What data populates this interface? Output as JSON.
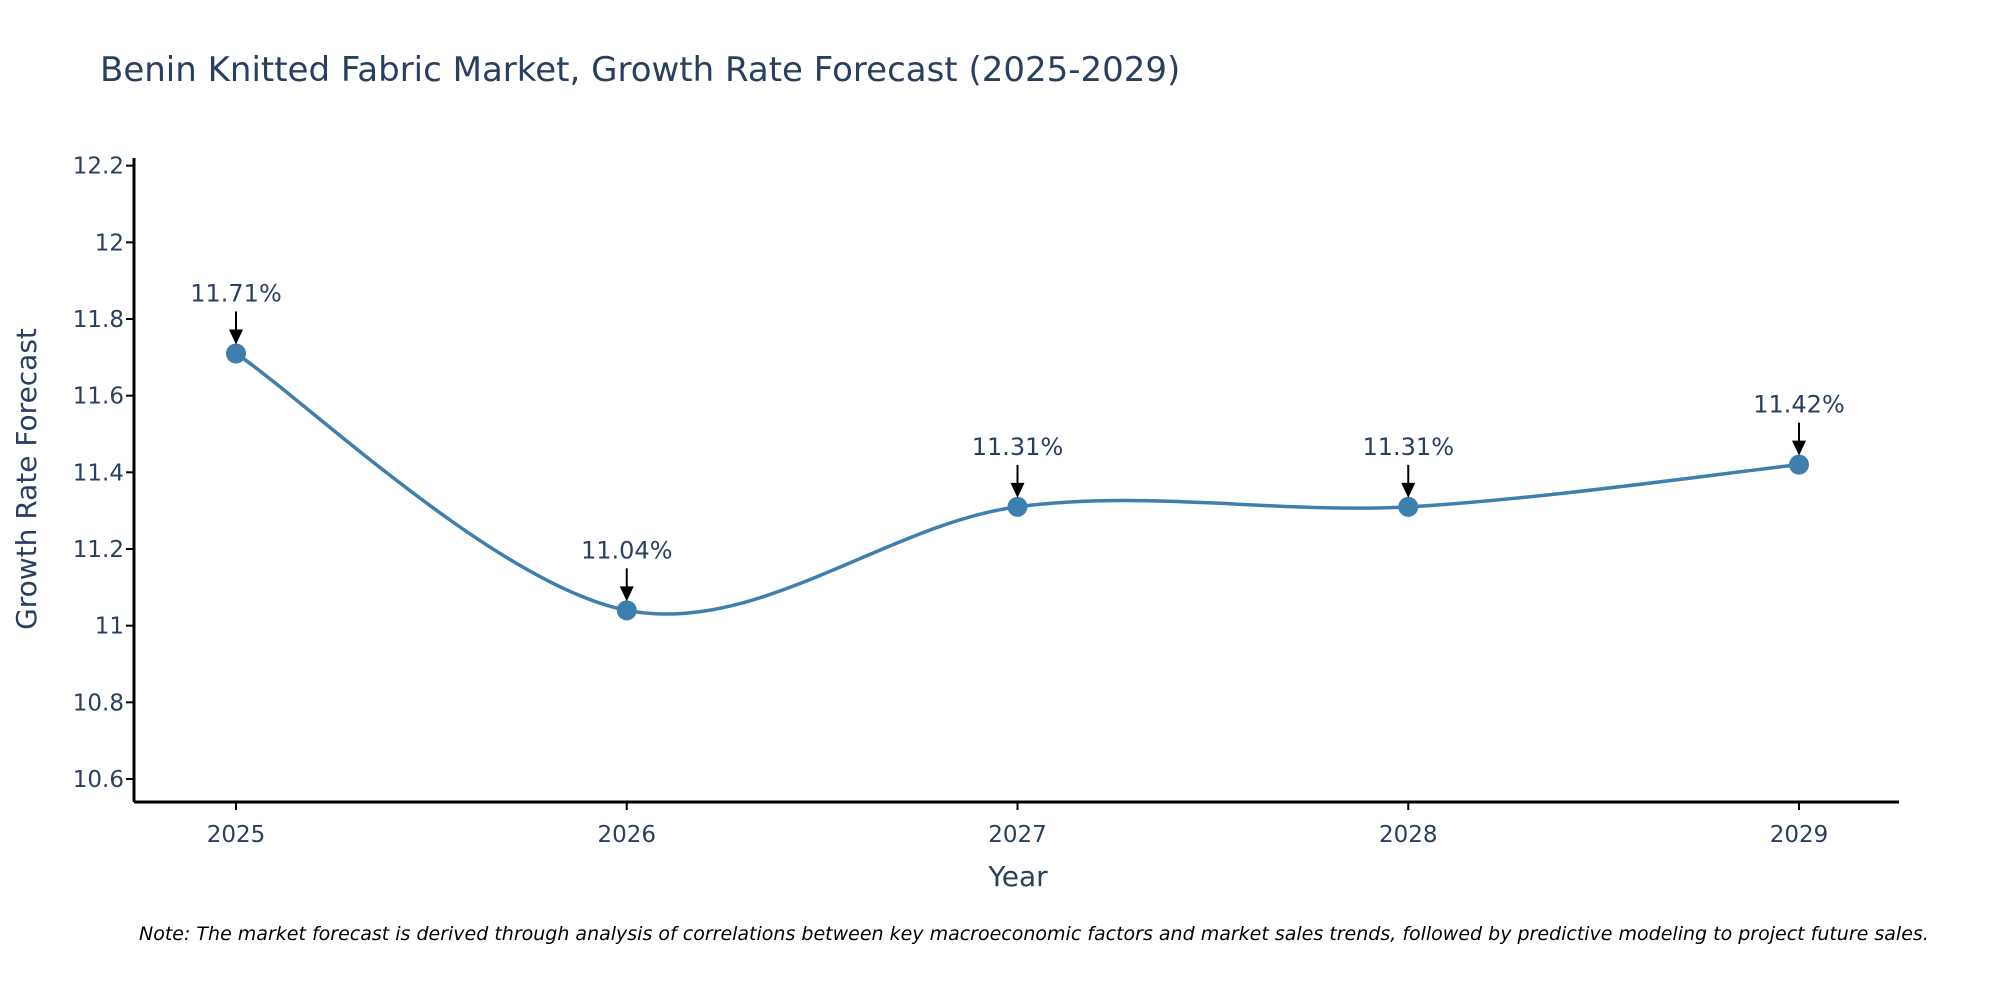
{
  "chart_data": {
    "type": "line",
    "title": "Benin Knitted Fabric Market, Growth Rate Forecast (2025-2029)",
    "xlabel": "Year",
    "ylabel": "Growth Rate Forecast",
    "categories": [
      "2025",
      "2026",
      "2027",
      "2028",
      "2029"
    ],
    "values": [
      11.71,
      11.04,
      11.31,
      11.31,
      11.42
    ],
    "data_labels": [
      "11.71%",
      "11.04%",
      "11.31%",
      "11.31%",
      "11.42%"
    ],
    "ylim": [
      10.54,
      12.22
    ],
    "yticks": [
      10.6,
      10.8,
      11,
      11.2,
      11.4,
      11.6,
      11.8,
      12,
      12.2
    ],
    "ytick_labels": [
      "10.6",
      "10.8",
      "11",
      "11.2",
      "11.4",
      "11.6",
      "11.8",
      "12",
      "12.2"
    ],
    "grid": false,
    "line_color": "#3f7fad",
    "marker_color": "#3f7fad",
    "note": "Note: The market forecast is derived through analysis of correlations between key macroeconomic factors and market sales trends, followed by predictive modeling to project future sales."
  }
}
